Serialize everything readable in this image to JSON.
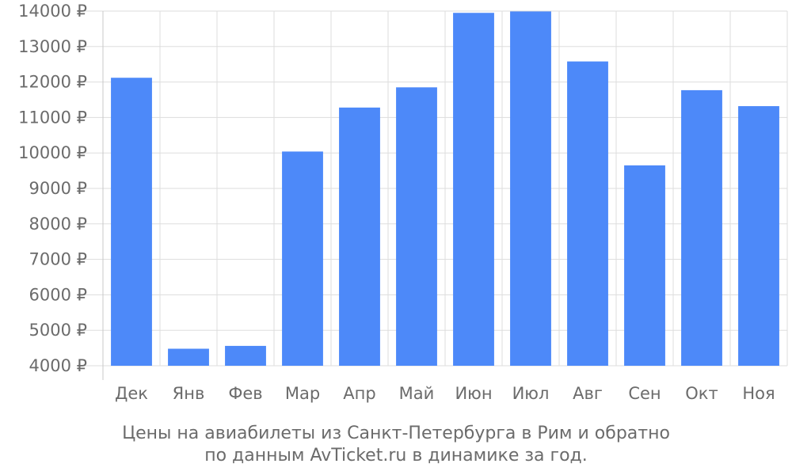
{
  "chart_data": {
    "type": "bar",
    "categories": [
      "Дек",
      "Янв",
      "Фев",
      "Мар",
      "Апр",
      "Май",
      "Июн",
      "Июл",
      "Авг",
      "Сен",
      "Окт",
      "Ноя"
    ],
    "values": [
      12120,
      4480,
      4560,
      10040,
      11280,
      11850,
      13950,
      13990,
      12580,
      9650,
      11770,
      11320
    ],
    "ylim": [
      4000,
      14000
    ],
    "yticks": [
      4000,
      5000,
      6000,
      7000,
      8000,
      9000,
      10000,
      11000,
      12000,
      13000,
      14000
    ],
    "ytick_labels": [
      "4000 ₽",
      "5000 ₽",
      "6000 ₽",
      "7000 ₽",
      "8000 ₽",
      "9000 ₽",
      "10000 ₽",
      "11000 ₽",
      "12000 ₽",
      "13000 ₽",
      "14000 ₽"
    ],
    "grid": true,
    "bar_color": "#4d89f9",
    "caption_line1": "Цены на авиабилеты из Санкт-Петербурга в Рим и обратно",
    "caption_line2": "по данным AvTicket.ru в динамике за год."
  }
}
